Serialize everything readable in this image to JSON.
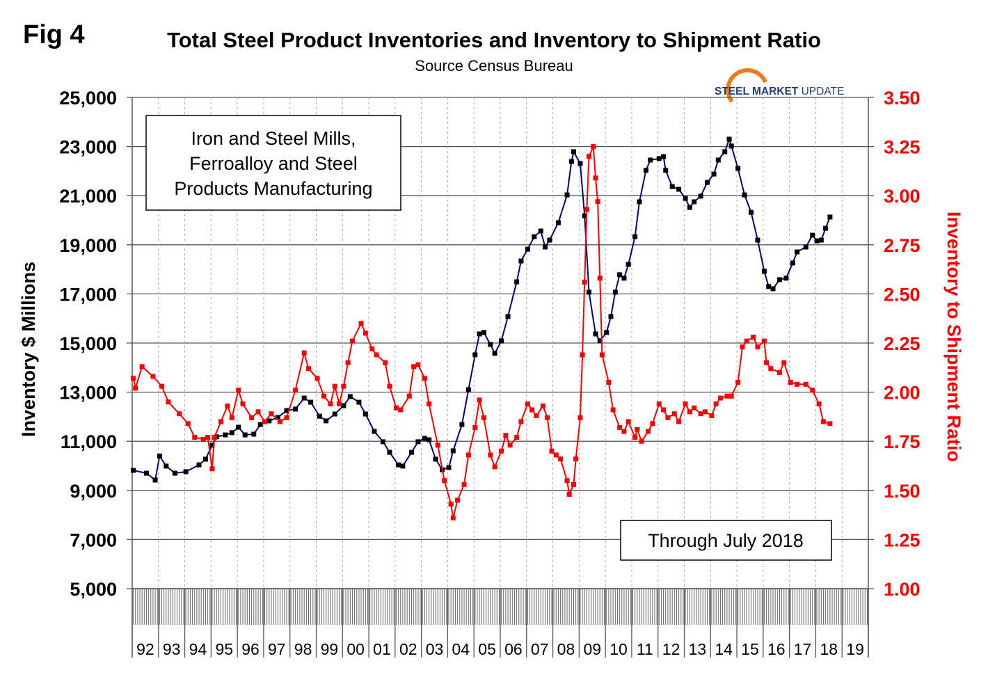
{
  "figure_label": "Fig 4",
  "logo": {
    "text_bold": "STEEL MARKET",
    "text_light": "UPDATE",
    "colors": {
      "text": "#1f3d7a",
      "swoosh": "#f07a1a"
    }
  },
  "chart_data": {
    "type": "line",
    "title": "Total Steel Product Inventories and Inventory to Shipment Ratio",
    "subtitle": "Source Census Bureau",
    "ylabel_left": "Inventory $ Millions",
    "ylabel_right": "Inventory to Shipment Ratio",
    "annotations": {
      "box1": [
        "Iron and Steel Mills,",
        "Ferroalloy and Steel",
        "Products Manufacturing"
      ],
      "box2": "Through July 2018"
    },
    "x_range": [
      "1992-01",
      "2019-12"
    ],
    "x_tick_labels": [
      "92",
      "93",
      "94",
      "95",
      "96",
      "97",
      "98",
      "99",
      "00",
      "01",
      "02",
      "03",
      "04",
      "05",
      "06",
      "07",
      "08",
      "09",
      "10",
      "11",
      "12",
      "13",
      "14",
      "15",
      "16",
      "17",
      "18",
      "19"
    ],
    "y_left": {
      "range": [
        5000,
        25000
      ],
      "ticks": [
        "5,000",
        "7,000",
        "9,000",
        "11,000",
        "13,000",
        "15,000",
        "17,000",
        "19,000",
        "21,000",
        "23,000",
        "25,000"
      ]
    },
    "y_right": {
      "range": [
        1.0,
        3.5
      ],
      "ticks": [
        "1.00",
        "1.25",
        "1.50",
        "1.75",
        "2.00",
        "2.25",
        "2.50",
        "2.75",
        "3.00",
        "3.25",
        "3.50"
      ],
      "color": "#ff0000"
    },
    "grid": {
      "horizontal": true,
      "vertical_dashed": true
    },
    "series": [
      {
        "axis": "left",
        "color": "#000000",
        "line_color": "#000080",
        "points": [
          [
            "1992-01",
            9815
          ],
          [
            "1992-07",
            9700
          ],
          [
            "1992-11",
            9420
          ],
          [
            "1993-01",
            10400
          ],
          [
            "1993-04",
            9990
          ],
          [
            "1993-08",
            9700
          ],
          [
            "1994-01",
            9760
          ],
          [
            "1994-07",
            10040
          ],
          [
            "1994-10",
            10270
          ],
          [
            "1995-01",
            10840
          ],
          [
            "1995-03",
            11180
          ],
          [
            "1995-07",
            11260
          ],
          [
            "1995-10",
            11350
          ],
          [
            "1996-01",
            11570
          ],
          [
            "1996-04",
            11260
          ],
          [
            "1996-08",
            11290
          ],
          [
            "1996-11",
            11680
          ],
          [
            "1997-03",
            11830
          ],
          [
            "1997-07",
            11970
          ],
          [
            "1997-11",
            12250
          ],
          [
            "1998-03",
            12310
          ],
          [
            "1998-07",
            12760
          ],
          [
            "1998-10",
            12590
          ],
          [
            "1999-02",
            12020
          ],
          [
            "1999-05",
            11830
          ],
          [
            "1999-09",
            12110
          ],
          [
            "2000-01",
            12450
          ],
          [
            "2000-04",
            12820
          ],
          [
            "2000-08",
            12590
          ],
          [
            "2000-11",
            12110
          ],
          [
            "2001-03",
            11400
          ],
          [
            "2001-07",
            10980
          ],
          [
            "2001-10",
            10550
          ],
          [
            "2002-02",
            10040
          ],
          [
            "2002-04",
            9990
          ],
          [
            "2002-08",
            10550
          ],
          [
            "2002-11",
            10980
          ],
          [
            "2003-02",
            11120
          ],
          [
            "2003-04",
            11060
          ],
          [
            "2003-07",
            10270
          ],
          [
            "2003-10",
            9840
          ],
          [
            "2004-01",
            9930
          ],
          [
            "2004-03",
            10610
          ],
          [
            "2004-07",
            11680
          ],
          [
            "2004-10",
            13100
          ],
          [
            "2005-01",
            14520
          ],
          [
            "2005-03",
            15370
          ],
          [
            "2005-05",
            15430
          ],
          [
            "2005-08",
            14940
          ],
          [
            "2005-10",
            14580
          ],
          [
            "2006-01",
            15090
          ],
          [
            "2006-04",
            16080
          ],
          [
            "2006-08",
            17490
          ],
          [
            "2006-10",
            18340
          ],
          [
            "2007-01",
            18820
          ],
          [
            "2007-04",
            19330
          ],
          [
            "2007-07",
            19560
          ],
          [
            "2007-09",
            18910
          ],
          [
            "2007-11",
            19190
          ],
          [
            "2008-03",
            19900
          ],
          [
            "2008-07",
            21030
          ],
          [
            "2008-09",
            22390
          ],
          [
            "2008-10",
            22790
          ],
          [
            "2009-01",
            22310
          ],
          [
            "2009-03",
            20180
          ],
          [
            "2009-05",
            17070
          ],
          [
            "2009-08",
            15370
          ],
          [
            "2009-10",
            15090
          ],
          [
            "2010-01",
            15430
          ],
          [
            "2010-03",
            16080
          ],
          [
            "2010-05",
            17070
          ],
          [
            "2010-07",
            17780
          ],
          [
            "2010-09",
            17640
          ],
          [
            "2010-11",
            18200
          ],
          [
            "2011-02",
            19330
          ],
          [
            "2011-04",
            20750
          ],
          [
            "2011-07",
            22030
          ],
          [
            "2011-09",
            22450
          ],
          [
            "2012-01",
            22510
          ],
          [
            "2012-03",
            22590
          ],
          [
            "2012-04",
            22030
          ],
          [
            "2012-07",
            21370
          ],
          [
            "2012-10",
            21260
          ],
          [
            "2013-01",
            20890
          ],
          [
            "2013-03",
            20520
          ],
          [
            "2013-05",
            20750
          ],
          [
            "2013-08",
            20980
          ],
          [
            "2013-11",
            21540
          ],
          [
            "2014-02",
            21880
          ],
          [
            "2014-04",
            22450
          ],
          [
            "2014-07",
            22790
          ],
          [
            "2014-09",
            23300
          ],
          [
            "2014-10",
            23020
          ],
          [
            "2015-01",
            22110
          ],
          [
            "2015-04",
            21030
          ],
          [
            "2015-07",
            20320
          ],
          [
            "2015-10",
            19190
          ],
          [
            "2016-01",
            17920
          ],
          [
            "2016-03",
            17300
          ],
          [
            "2016-05",
            17210
          ],
          [
            "2016-08",
            17580
          ],
          [
            "2016-11",
            17640
          ],
          [
            "2017-02",
            18260
          ],
          [
            "2017-04",
            18710
          ],
          [
            "2017-08",
            18910
          ],
          [
            "2017-11",
            19390
          ],
          [
            "2018-01",
            19160
          ],
          [
            "2018-03",
            19190
          ],
          [
            "2018-05",
            19670
          ],
          [
            "2018-07",
            20130
          ]
        ]
      },
      {
        "axis": "right",
        "color": "#ff0000",
        "line_color": "#ff0000",
        "points": [
          [
            "1992-01",
            2.07
          ],
          [
            "1992-02",
            2.02
          ],
          [
            "1992-05",
            2.13
          ],
          [
            "1992-10",
            2.08
          ],
          [
            "1993-02",
            2.03
          ],
          [
            "1993-05",
            1.95
          ],
          [
            "1993-10",
            1.89
          ],
          [
            "1994-02",
            1.84
          ],
          [
            "1994-05",
            1.77
          ],
          [
            "1994-09",
            1.76
          ],
          [
            "1994-11",
            1.77
          ],
          [
            "1995-01",
            1.61
          ],
          [
            "1995-02",
            1.77
          ],
          [
            "1995-05",
            1.85
          ],
          [
            "1995-08",
            1.93
          ],
          [
            "1995-10",
            1.87
          ],
          [
            "1996-01",
            2.01
          ],
          [
            "1996-03",
            1.94
          ],
          [
            "1996-07",
            1.87
          ],
          [
            "1996-10",
            1.9
          ],
          [
            "1997-01",
            1.85
          ],
          [
            "1997-04",
            1.89
          ],
          [
            "1997-08",
            1.85
          ],
          [
            "1997-11",
            1.87
          ],
          [
            "1998-03",
            2.01
          ],
          [
            "1998-07",
            2.2
          ],
          [
            "1998-09",
            2.12
          ],
          [
            "1999-01",
            2.07
          ],
          [
            "1999-04",
            1.98
          ],
          [
            "1999-07",
            1.94
          ],
          [
            "1999-09",
            2.03
          ],
          [
            "1999-11",
            1.94
          ],
          [
            "2000-01",
            2.03
          ],
          [
            "2000-03",
            2.15
          ],
          [
            "2000-05",
            2.26
          ],
          [
            "2000-09",
            2.35
          ],
          [
            "2000-11",
            2.3
          ],
          [
            "2001-02",
            2.22
          ],
          [
            "2001-04",
            2.19
          ],
          [
            "2001-08",
            2.15
          ],
          [
            "2001-10",
            2.03
          ],
          [
            "2002-01",
            1.92
          ],
          [
            "2002-03",
            1.91
          ],
          [
            "2002-07",
            1.98
          ],
          [
            "2002-09",
            2.13
          ],
          [
            "2002-11",
            2.14
          ],
          [
            "2003-02",
            2.07
          ],
          [
            "2003-04",
            1.94
          ],
          [
            "2003-08",
            1.73
          ],
          [
            "2003-11",
            1.55
          ],
          [
            "2004-02",
            1.43
          ],
          [
            "2004-03",
            1.36
          ],
          [
            "2004-05",
            1.45
          ],
          [
            "2004-08",
            1.53
          ],
          [
            "2004-10",
            1.68
          ],
          [
            "2005-01",
            1.82
          ],
          [
            "2005-03",
            1.96
          ],
          [
            "2005-05",
            1.87
          ],
          [
            "2005-08",
            1.68
          ],
          [
            "2005-10",
            1.62
          ],
          [
            "2006-01",
            1.7
          ],
          [
            "2006-03",
            1.78
          ],
          [
            "2006-05",
            1.73
          ],
          [
            "2006-08",
            1.77
          ],
          [
            "2006-10",
            1.85
          ],
          [
            "2007-01",
            1.94
          ],
          [
            "2007-03",
            1.91
          ],
          [
            "2007-05",
            1.88
          ],
          [
            "2007-08",
            1.93
          ],
          [
            "2007-10",
            1.87
          ],
          [
            "2007-12",
            1.7
          ],
          [
            "2008-02",
            1.68
          ],
          [
            "2008-04",
            1.66
          ],
          [
            "2008-07",
            1.55
          ],
          [
            "2008-08",
            1.48
          ],
          [
            "2008-10",
            1.53
          ],
          [
            "2008-11",
            1.66
          ],
          [
            "2009-01",
            1.87
          ],
          [
            "2009-02",
            2.19
          ],
          [
            "2009-03",
            2.56
          ],
          [
            "2009-04",
            2.93
          ],
          [
            "2009-05",
            3.2
          ],
          [
            "2009-07",
            3.25
          ],
          [
            "2009-08",
            3.09
          ],
          [
            "2009-09",
            2.97
          ],
          [
            "2009-10",
            2.58
          ],
          [
            "2009-11",
            2.19
          ],
          [
            "2010-02",
            2.05
          ],
          [
            "2010-04",
            1.91
          ],
          [
            "2010-07",
            1.82
          ],
          [
            "2010-09",
            1.8
          ],
          [
            "2010-11",
            1.85
          ],
          [
            "2011-02",
            1.77
          ],
          [
            "2011-03",
            1.81
          ],
          [
            "2011-05",
            1.75
          ],
          [
            "2011-08",
            1.8
          ],
          [
            "2011-10",
            1.84
          ],
          [
            "2012-01",
            1.94
          ],
          [
            "2012-03",
            1.91
          ],
          [
            "2012-05",
            1.87
          ],
          [
            "2012-08",
            1.89
          ],
          [
            "2012-10",
            1.85
          ],
          [
            "2013-01",
            1.94
          ],
          [
            "2013-03",
            1.9
          ],
          [
            "2013-05",
            1.92
          ],
          [
            "2013-08",
            1.89
          ],
          [
            "2013-10",
            1.9
          ],
          [
            "2014-01",
            1.88
          ],
          [
            "2014-03",
            1.94
          ],
          [
            "2014-05",
            1.97
          ],
          [
            "2014-08",
            1.98
          ],
          [
            "2014-10",
            1.98
          ],
          [
            "2015-01",
            2.05
          ],
          [
            "2015-03",
            2.23
          ],
          [
            "2015-05",
            2.26
          ],
          [
            "2015-08",
            2.28
          ],
          [
            "2015-10",
            2.23
          ],
          [
            "2016-01",
            2.26
          ],
          [
            "2016-02",
            2.15
          ],
          [
            "2016-04",
            2.12
          ],
          [
            "2016-08",
            2.1
          ],
          [
            "2016-10",
            2.15
          ],
          [
            "2017-01",
            2.05
          ],
          [
            "2017-04",
            2.04
          ],
          [
            "2017-08",
            2.04
          ],
          [
            "2017-11",
            2.01
          ],
          [
            "2018-02",
            1.94
          ],
          [
            "2018-04",
            1.85
          ],
          [
            "2018-07",
            1.84
          ]
        ]
      }
    ]
  }
}
